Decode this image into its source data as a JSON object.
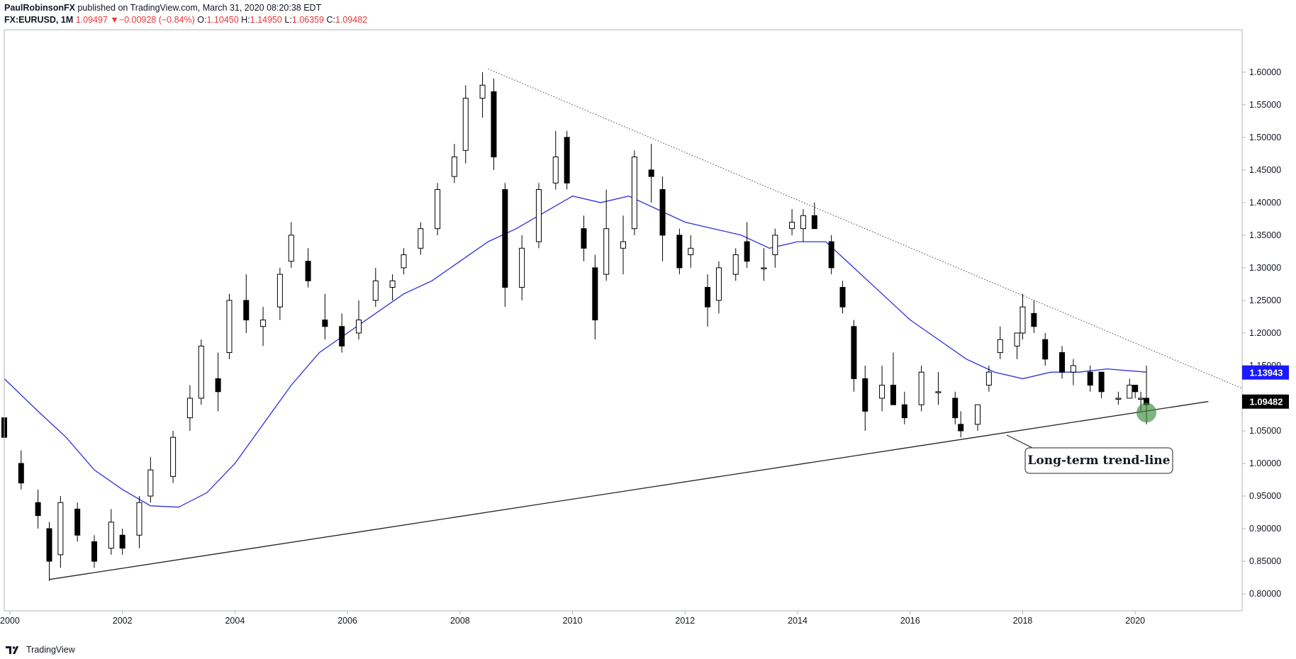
{
  "header": {
    "author": "PaulRobinsonFX",
    "published": "published on TradingView.com, March 31, 2020 08:20:38 EDT",
    "symbol": "FX:EURUSD, 1M",
    "last": "1.09497",
    "change_arrow": "▼",
    "change": "−0.00928 (−0.84%)",
    "o_label": "O:",
    "o": "1.10450",
    "h_label": "H:",
    "h": "1.14950",
    "l_label": "L:",
    "l": "1.06359",
    "c_label": "C:",
    "c": "1.09482"
  },
  "footer": {
    "brand": "TradingView",
    "logo_icon": "tradingview-logo-icon"
  },
  "colors": {
    "up": "#ffffff",
    "down": "#000000",
    "ma": "#2f2fe0",
    "ma_label_bg": "#1a1aff",
    "price_label_bg": "#000000",
    "marker": "#3a8a3a"
  },
  "chart_data": {
    "type": "candlestick",
    "title": "",
    "xlabel": "",
    "ylabel": "",
    "x_ticks": [
      "2000",
      "2002",
      "2004",
      "2006",
      "2008",
      "2010",
      "2012",
      "2014",
      "2016",
      "2018",
      "2020"
    ],
    "y_ticks": [
      "1.60000",
      "1.55000",
      "1.50000",
      "1.45000",
      "1.40000",
      "1.35000",
      "1.30000",
      "1.25000",
      "1.20000",
      "1.15000",
      "1.10000",
      "1.05000",
      "1.00000",
      "0.95000",
      "0.90000",
      "0.85000",
      "0.80000"
    ],
    "xlim": [
      1999.9,
      2021.9
    ],
    "ylim": [
      0.774,
      1.665
    ],
    "ma_label": "1.13943",
    "price_label": "1.09482",
    "annotation": "Long-term trend-line",
    "candles": [
      {
        "t": 1999.9,
        "o": 1.07,
        "h": 1.1,
        "l": 1.03,
        "c": 1.04
      },
      {
        "t": 2000.2,
        "o": 1.0,
        "h": 1.02,
        "l": 0.96,
        "c": 0.97
      },
      {
        "t": 2000.5,
        "o": 0.94,
        "h": 0.96,
        "l": 0.9,
        "c": 0.92
      },
      {
        "t": 2000.7,
        "o": 0.9,
        "h": 0.91,
        "l": 0.82,
        "c": 0.85
      },
      {
        "t": 2000.9,
        "o": 0.86,
        "h": 0.95,
        "l": 0.84,
        "c": 0.94
      },
      {
        "t": 2001.2,
        "o": 0.93,
        "h": 0.94,
        "l": 0.88,
        "c": 0.89
      },
      {
        "t": 2001.5,
        "o": 0.88,
        "h": 0.89,
        "l": 0.84,
        "c": 0.85
      },
      {
        "t": 2001.8,
        "o": 0.87,
        "h": 0.93,
        "l": 0.86,
        "c": 0.91
      },
      {
        "t": 2002.0,
        "o": 0.89,
        "h": 0.9,
        "l": 0.86,
        "c": 0.87
      },
      {
        "t": 2002.3,
        "o": 0.89,
        "h": 0.95,
        "l": 0.87,
        "c": 0.94
      },
      {
        "t": 2002.5,
        "o": 0.95,
        "h": 1.01,
        "l": 0.94,
        "c": 0.99
      },
      {
        "t": 2002.9,
        "o": 0.98,
        "h": 1.05,
        "l": 0.97,
        "c": 1.04
      },
      {
        "t": 2003.2,
        "o": 1.07,
        "h": 1.12,
        "l": 1.05,
        "c": 1.1
      },
      {
        "t": 2003.4,
        "o": 1.1,
        "h": 1.19,
        "l": 1.09,
        "c": 1.18
      },
      {
        "t": 2003.7,
        "o": 1.13,
        "h": 1.17,
        "l": 1.08,
        "c": 1.11
      },
      {
        "t": 2003.9,
        "o": 1.17,
        "h": 1.26,
        "l": 1.16,
        "c": 1.25
      },
      {
        "t": 2004.2,
        "o": 1.25,
        "h": 1.29,
        "l": 1.2,
        "c": 1.22
      },
      {
        "t": 2004.5,
        "o": 1.21,
        "h": 1.24,
        "l": 1.18,
        "c": 1.22
      },
      {
        "t": 2004.8,
        "o": 1.24,
        "h": 1.3,
        "l": 1.22,
        "c": 1.29
      },
      {
        "t": 2005.0,
        "o": 1.31,
        "h": 1.37,
        "l": 1.3,
        "c": 1.35
      },
      {
        "t": 2005.3,
        "o": 1.31,
        "h": 1.33,
        "l": 1.27,
        "c": 1.28
      },
      {
        "t": 2005.6,
        "o": 1.22,
        "h": 1.26,
        "l": 1.19,
        "c": 1.21
      },
      {
        "t": 2005.9,
        "o": 1.21,
        "h": 1.23,
        "l": 1.17,
        "c": 1.18
      },
      {
        "t": 2006.2,
        "o": 1.2,
        "h": 1.25,
        "l": 1.19,
        "c": 1.22
      },
      {
        "t": 2006.5,
        "o": 1.25,
        "h": 1.3,
        "l": 1.24,
        "c": 1.28
      },
      {
        "t": 2006.8,
        "o": 1.27,
        "h": 1.29,
        "l": 1.25,
        "c": 1.28
      },
      {
        "t": 2007.0,
        "o": 1.3,
        "h": 1.33,
        "l": 1.29,
        "c": 1.32
      },
      {
        "t": 2007.3,
        "o": 1.33,
        "h": 1.37,
        "l": 1.32,
        "c": 1.36
      },
      {
        "t": 2007.6,
        "o": 1.36,
        "h": 1.43,
        "l": 1.35,
        "c": 1.42
      },
      {
        "t": 2007.9,
        "o": 1.44,
        "h": 1.49,
        "l": 1.43,
        "c": 1.47
      },
      {
        "t": 2008.1,
        "o": 1.48,
        "h": 1.58,
        "l": 1.46,
        "c": 1.56
      },
      {
        "t": 2008.4,
        "o": 1.56,
        "h": 1.6,
        "l": 1.53,
        "c": 1.58
      },
      {
        "t": 2008.6,
        "o": 1.57,
        "h": 1.59,
        "l": 1.45,
        "c": 1.47
      },
      {
        "t": 2008.8,
        "o": 1.42,
        "h": 1.43,
        "l": 1.24,
        "c": 1.27
      },
      {
        "t": 2009.1,
        "o": 1.27,
        "h": 1.35,
        "l": 1.25,
        "c": 1.33
      },
      {
        "t": 2009.4,
        "o": 1.34,
        "h": 1.43,
        "l": 1.33,
        "c": 1.42
      },
      {
        "t": 2009.7,
        "o": 1.43,
        "h": 1.51,
        "l": 1.42,
        "c": 1.47
      },
      {
        "t": 2009.9,
        "o": 1.5,
        "h": 1.51,
        "l": 1.42,
        "c": 1.43
      },
      {
        "t": 2010.2,
        "o": 1.36,
        "h": 1.38,
        "l": 1.31,
        "c": 1.33
      },
      {
        "t": 2010.4,
        "o": 1.3,
        "h": 1.32,
        "l": 1.19,
        "c": 1.22
      },
      {
        "t": 2010.6,
        "o": 1.29,
        "h": 1.42,
        "l": 1.28,
        "c": 1.36
      },
      {
        "t": 2010.9,
        "o": 1.33,
        "h": 1.38,
        "l": 1.29,
        "c": 1.34
      },
      {
        "t": 2011.1,
        "o": 1.36,
        "h": 1.48,
        "l": 1.35,
        "c": 1.47
      },
      {
        "t": 2011.4,
        "o": 1.45,
        "h": 1.49,
        "l": 1.4,
        "c": 1.44
      },
      {
        "t": 2011.6,
        "o": 1.42,
        "h": 1.44,
        "l": 1.31,
        "c": 1.35
      },
      {
        "t": 2011.9,
        "o": 1.35,
        "h": 1.36,
        "l": 1.29,
        "c": 1.3
      },
      {
        "t": 2012.1,
        "o": 1.32,
        "h": 1.35,
        "l": 1.3,
        "c": 1.33
      },
      {
        "t": 2012.4,
        "o": 1.27,
        "h": 1.29,
        "l": 1.21,
        "c": 1.24
      },
      {
        "t": 2012.6,
        "o": 1.25,
        "h": 1.31,
        "l": 1.23,
        "c": 1.3
      },
      {
        "t": 2012.9,
        "o": 1.29,
        "h": 1.33,
        "l": 1.28,
        "c": 1.32
      },
      {
        "t": 2013.1,
        "o": 1.34,
        "h": 1.37,
        "l": 1.3,
        "c": 1.31
      },
      {
        "t": 2013.4,
        "o": 1.3,
        "h": 1.33,
        "l": 1.28,
        "c": 1.3
      },
      {
        "t": 2013.6,
        "o": 1.32,
        "h": 1.36,
        "l": 1.3,
        "c": 1.35
      },
      {
        "t": 2013.9,
        "o": 1.36,
        "h": 1.39,
        "l": 1.35,
        "c": 1.37
      },
      {
        "t": 2014.1,
        "o": 1.36,
        "h": 1.39,
        "l": 1.34,
        "c": 1.38
      },
      {
        "t": 2014.3,
        "o": 1.38,
        "h": 1.4,
        "l": 1.36,
        "c": 1.36
      },
      {
        "t": 2014.6,
        "o": 1.34,
        "h": 1.35,
        "l": 1.29,
        "c": 1.3
      },
      {
        "t": 2014.8,
        "o": 1.27,
        "h": 1.28,
        "l": 1.23,
        "c": 1.24
      },
      {
        "t": 2015.0,
        "o": 1.21,
        "h": 1.22,
        "l": 1.11,
        "c": 1.13
      },
      {
        "t": 2015.2,
        "o": 1.13,
        "h": 1.15,
        "l": 1.05,
        "c": 1.08
      },
      {
        "t": 2015.5,
        "o": 1.1,
        "h": 1.15,
        "l": 1.08,
        "c": 1.12
      },
      {
        "t": 2015.7,
        "o": 1.12,
        "h": 1.17,
        "l": 1.09,
        "c": 1.09
      },
      {
        "t": 2015.9,
        "o": 1.09,
        "h": 1.11,
        "l": 1.06,
        "c": 1.07
      },
      {
        "t": 2016.2,
        "o": 1.09,
        "h": 1.15,
        "l": 1.08,
        "c": 1.14
      },
      {
        "t": 2016.5,
        "o": 1.11,
        "h": 1.14,
        "l": 1.09,
        "c": 1.11
      },
      {
        "t": 2016.8,
        "o": 1.1,
        "h": 1.11,
        "l": 1.06,
        "c": 1.07
      },
      {
        "t": 2016.9,
        "o": 1.06,
        "h": 1.08,
        "l": 1.04,
        "c": 1.05
      },
      {
        "t": 2017.2,
        "o": 1.06,
        "h": 1.09,
        "l": 1.05,
        "c": 1.09
      },
      {
        "t": 2017.4,
        "o": 1.12,
        "h": 1.15,
        "l": 1.11,
        "c": 1.14
      },
      {
        "t": 2017.6,
        "o": 1.17,
        "h": 1.21,
        "l": 1.16,
        "c": 1.19
      },
      {
        "t": 2017.9,
        "o": 1.18,
        "h": 1.2,
        "l": 1.16,
        "c": 1.2
      },
      {
        "t": 2018.0,
        "o": 1.2,
        "h": 1.26,
        "l": 1.19,
        "c": 1.24
      },
      {
        "t": 2018.2,
        "o": 1.23,
        "h": 1.25,
        "l": 1.2,
        "c": 1.21
      },
      {
        "t": 2018.4,
        "o": 1.19,
        "h": 1.2,
        "l": 1.15,
        "c": 1.16
      },
      {
        "t": 2018.7,
        "o": 1.17,
        "h": 1.18,
        "l": 1.13,
        "c": 1.14
      },
      {
        "t": 2018.9,
        "o": 1.14,
        "h": 1.16,
        "l": 1.12,
        "c": 1.15
      },
      {
        "t": 2019.2,
        "o": 1.14,
        "h": 1.15,
        "l": 1.11,
        "c": 1.12
      },
      {
        "t": 2019.4,
        "o": 1.14,
        "h": 1.14,
        "l": 1.1,
        "c": 1.11
      },
      {
        "t": 2019.7,
        "o": 1.1,
        "h": 1.11,
        "l": 1.09,
        "c": 1.1
      },
      {
        "t": 2019.9,
        "o": 1.1,
        "h": 1.13,
        "l": 1.1,
        "c": 1.12
      },
      {
        "t": 2020.0,
        "o": 1.12,
        "h": 1.12,
        "l": 1.1,
        "c": 1.11
      },
      {
        "t": 2020.1,
        "o": 1.1,
        "h": 1.11,
        "l": 1.08,
        "c": 1.1
      },
      {
        "t": 2020.2,
        "o": 1.1,
        "h": 1.15,
        "l": 1.06,
        "c": 1.09
      }
    ],
    "moving_average": [
      {
        "t": 1999.9,
        "v": 1.13
      },
      {
        "t": 2000.5,
        "v": 1.08
      },
      {
        "t": 2001.0,
        "v": 1.04
      },
      {
        "t": 2001.5,
        "v": 0.99
      },
      {
        "t": 2002.0,
        "v": 0.96
      },
      {
        "t": 2002.5,
        "v": 0.935
      },
      {
        "t": 2003.0,
        "v": 0.933
      },
      {
        "t": 2003.5,
        "v": 0.955
      },
      {
        "t": 2004.0,
        "v": 1.0
      },
      {
        "t": 2004.5,
        "v": 1.06
      },
      {
        "t": 2005.0,
        "v": 1.12
      },
      {
        "t": 2005.5,
        "v": 1.17
      },
      {
        "t": 2006.0,
        "v": 1.2
      },
      {
        "t": 2006.5,
        "v": 1.23
      },
      {
        "t": 2007.0,
        "v": 1.26
      },
      {
        "t": 2007.5,
        "v": 1.28
      },
      {
        "t": 2008.0,
        "v": 1.31
      },
      {
        "t": 2008.5,
        "v": 1.34
      },
      {
        "t": 2009.0,
        "v": 1.36
      },
      {
        "t": 2009.5,
        "v": 1.385
      },
      {
        "t": 2010.0,
        "v": 1.41
      },
      {
        "t": 2010.5,
        "v": 1.4
      },
      {
        "t": 2011.0,
        "v": 1.41
      },
      {
        "t": 2011.5,
        "v": 1.39
      },
      {
        "t": 2012.0,
        "v": 1.37
      },
      {
        "t": 2012.5,
        "v": 1.36
      },
      {
        "t": 2013.0,
        "v": 1.35
      },
      {
        "t": 2013.5,
        "v": 1.33
      },
      {
        "t": 2014.0,
        "v": 1.34
      },
      {
        "t": 2014.5,
        "v": 1.34
      },
      {
        "t": 2015.0,
        "v": 1.3
      },
      {
        "t": 2015.5,
        "v": 1.26
      },
      {
        "t": 2016.0,
        "v": 1.22
      },
      {
        "t": 2016.5,
        "v": 1.19
      },
      {
        "t": 2017.0,
        "v": 1.16
      },
      {
        "t": 2017.5,
        "v": 1.14
      },
      {
        "t": 2018.0,
        "v": 1.13
      },
      {
        "t": 2018.5,
        "v": 1.14
      },
      {
        "t": 2019.0,
        "v": 1.14
      },
      {
        "t": 2019.5,
        "v": 1.145
      },
      {
        "t": 2020.2,
        "v": 1.14
      }
    ],
    "trendlines": [
      {
        "name": "support",
        "style": "solid",
        "from": {
          "t": 2000.7,
          "v": 0.822
        },
        "to": {
          "t": 2021.3,
          "v": 1.095
        }
      },
      {
        "name": "resistance",
        "style": "dotted",
        "from": {
          "t": 2008.5,
          "v": 1.605
        },
        "to": {
          "t": 2021.9,
          "v": 1.115
        }
      }
    ],
    "marker": {
      "t": 2020.2,
      "v": 1.078
    }
  }
}
